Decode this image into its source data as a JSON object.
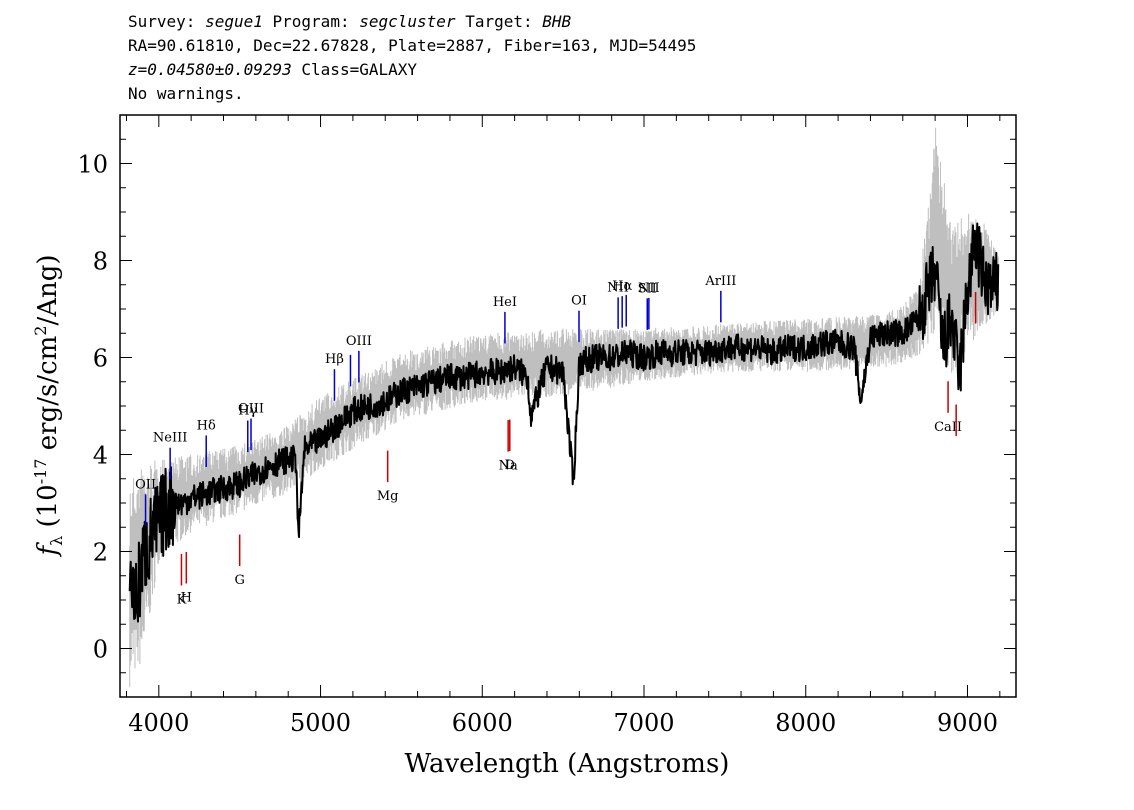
{
  "header": {
    "survey_label": "Survey:",
    "survey": "segue1",
    "program_label": "Program:",
    "program": "segcluster",
    "target_label": "Target:",
    "target": "BHB",
    "line2": "RA=90.61810, Dec=22.67828, Plate=2887, Fiber=163, MJD=54495",
    "redshift": "z=0.04580±0.09293",
    "class_text": "Class=GALAXY",
    "warnings": "No warnings."
  },
  "chart_data": {
    "type": "line",
    "xlabel": "Wavelength (Angstroms)",
    "ylabel": "f_λ (10^-17 erg/s/cm^2/Ang)",
    "xlim": [
      3760,
      9300
    ],
    "ylim": [
      -1,
      11
    ],
    "xticks": [
      4000,
      5000,
      6000,
      7000,
      8000,
      9000
    ],
    "yticks": [
      0,
      2,
      4,
      6,
      8,
      10
    ],
    "colors": {
      "flux": "#000000",
      "error": "#bfbfbf",
      "emission": "#0000cc",
      "absorption": "#cc0000"
    },
    "series": [
      {
        "role": "smoothed-flux",
        "x": [
          3820,
          3860,
          3900,
          3950,
          4000,
          4050,
          4100,
          4150,
          4200,
          4300,
          4400,
          4500,
          4600,
          4700,
          4800,
          4850,
          4862,
          4900,
          5000,
          5100,
          5200,
          5300,
          5400,
          5500,
          5600,
          5700,
          5800,
          5900,
          6000,
          6100,
          6200,
          6280,
          6300,
          6400,
          6500,
          6563,
          6600,
          6700,
          6800,
          6900,
          7000,
          7100,
          7200,
          7300,
          7400,
          7500,
          7600,
          7700,
          7800,
          7900,
          8000,
          8100,
          8200,
          8300,
          8340,
          8400,
          8500,
          8600,
          8700,
          8800,
          8850,
          8900,
          8950,
          9000,
          9050,
          9100,
          9150,
          9190
        ],
        "y": [
          1.5,
          1.0,
          1.8,
          2.3,
          2.6,
          2.9,
          3.0,
          3.0,
          3.1,
          3.2,
          3.3,
          3.4,
          3.6,
          3.8,
          3.9,
          3.9,
          2.2,
          4.1,
          4.3,
          4.6,
          4.9,
          5.0,
          5.1,
          5.3,
          5.4,
          5.5,
          5.6,
          5.6,
          5.7,
          5.7,
          5.8,
          5.6,
          4.8,
          5.8,
          5.7,
          3.4,
          5.9,
          6.0,
          6.0,
          6.1,
          6.0,
          6.1,
          6.1,
          6.1,
          6.1,
          6.2,
          6.2,
          6.2,
          6.1,
          6.2,
          6.2,
          6.3,
          6.3,
          6.2,
          5.1,
          6.4,
          6.5,
          6.5,
          6.8,
          7.8,
          6.2,
          6.8,
          5.6,
          7.4,
          8.4,
          7.6,
          7.4,
          7.5
        ]
      }
    ],
    "error_band": {
      "x": [
        3820,
        3900,
        4000,
        4200,
        4500,
        4800,
        5000,
        5500,
        6000,
        6500,
        7000,
        7500,
        8000,
        8500,
        8700,
        8800,
        8900,
        9000,
        9100,
        9190
      ],
      "low": [
        -0.8,
        -0.3,
        1.8,
        2.4,
        2.8,
        3.2,
        3.7,
        4.7,
        5.1,
        5.2,
        5.5,
        5.7,
        5.7,
        5.8,
        6.0,
        6.5,
        5.6,
        6.2,
        6.6,
        6.9
      ],
      "high": [
        3.5,
        3.8,
        3.9,
        4.0,
        4.2,
        4.6,
        5.2,
        6.1,
        6.5,
        6.6,
        6.6,
        6.7,
        6.8,
        6.9,
        7.4,
        10.8,
        8.8,
        9.0,
        8.8,
        8.1
      ]
    },
    "emission_lines": [
      {
        "label": "OII",
        "wave": 3918
      },
      {
        "label": "NeIII",
        "wave": 4070
      },
      {
        "label": "Hδ",
        "wave": 4293
      },
      {
        "label": "Hγ",
        "wave": 4550
      },
      {
        "label": "OIII",
        "wave": 4570
      },
      {
        "label": "Hβ",
        "wave": 5086
      },
      {
        "label": "",
        "wave": 5185
      },
      {
        "label": "OIII",
        "wave": 5237
      },
      {
        "label": "HeI",
        "wave": 6140
      },
      {
        "label": "OI",
        "wave": 6598
      },
      {
        "label": "NII",
        "wave": 6840
      },
      {
        "label": "Hα",
        "wave": 6865
      },
      {
        "label": "",
        "wave": 6890
      },
      {
        "label": "SII",
        "wave": 7020
      },
      {
        "label": "NII",
        "wave": 7030
      },
      {
        "label": "ArIII",
        "wave": 7475
      }
    ],
    "absorption_lines": [
      {
        "label": "K",
        "wave": 4140
      },
      {
        "label": "H",
        "wave": 4170
      },
      {
        "label": "G",
        "wave": 4500
      },
      {
        "label": "Mg",
        "wave": 5415
      },
      {
        "label": "Na",
        "wave": 6160
      },
      {
        "label": "D",
        "wave": 6170
      },
      {
        "label": "CaII",
        "wave": 8880
      },
      {
        "label": "",
        "wave": 8930
      },
      {
        "label": "",
        "wave": 9050
      }
    ]
  }
}
